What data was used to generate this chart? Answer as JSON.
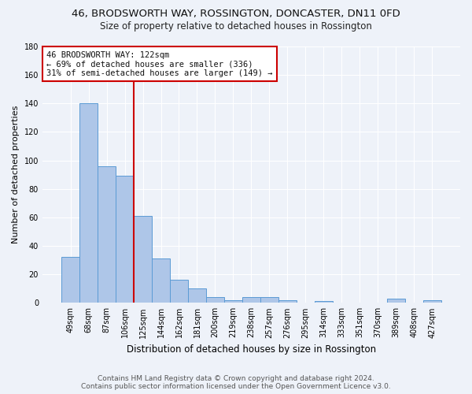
{
  "title1": "46, BRODSWORTH WAY, ROSSINGTON, DONCASTER, DN11 0FD",
  "title2": "Size of property relative to detached houses in Rossington",
  "xlabel": "Distribution of detached houses by size in Rossington",
  "ylabel": "Number of detached properties",
  "categories": [
    "49sqm",
    "68sqm",
    "87sqm",
    "106sqm",
    "125sqm",
    "144sqm",
    "162sqm",
    "181sqm",
    "200sqm",
    "219sqm",
    "238sqm",
    "257sqm",
    "276sqm",
    "295sqm",
    "314sqm",
    "333sqm",
    "351sqm",
    "370sqm",
    "389sqm",
    "408sqm",
    "427sqm"
  ],
  "values": [
    32,
    140,
    96,
    89,
    61,
    31,
    16,
    10,
    4,
    2,
    4,
    4,
    2,
    0,
    1,
    0,
    0,
    0,
    3,
    0,
    2
  ],
  "bar_color": "#aec6e8",
  "bar_edge_color": "#5b9bd5",
  "annotation_text_line1": "46 BRODSWORTH WAY: 122sqm",
  "annotation_text_line2": "← 69% of detached houses are smaller (336)",
  "annotation_text_line3": "31% of semi-detached houses are larger (149) →",
  "ylim": [
    0,
    180
  ],
  "yticks": [
    0,
    20,
    40,
    60,
    80,
    100,
    120,
    140,
    160,
    180
  ],
  "footer_line1": "Contains HM Land Registry data © Crown copyright and database right 2024.",
  "footer_line2": "Contains public sector information licensed under the Open Government Licence v3.0.",
  "background_color": "#eef2f9",
  "annotation_box_color": "#ffffff",
  "annotation_box_edge": "#cc0000",
  "vline_color": "#cc0000",
  "vline_x": 3.5,
  "grid_color": "#ffffff",
  "title1_fontsize": 9.5,
  "title2_fontsize": 8.5,
  "xlabel_fontsize": 8.5,
  "ylabel_fontsize": 8.0,
  "tick_fontsize": 7.0,
  "ann_fontsize": 7.5,
  "footer_fontsize": 6.5
}
